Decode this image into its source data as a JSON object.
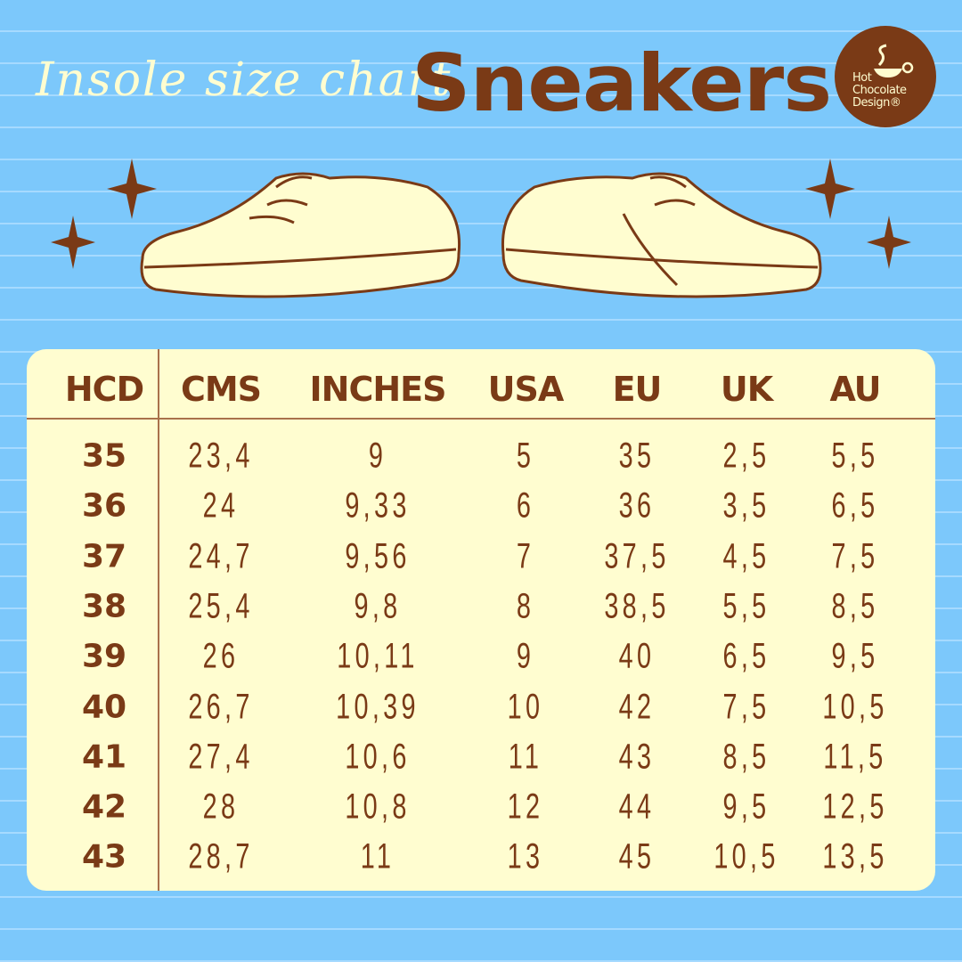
{
  "header": {
    "subtitle": "Insole size chart",
    "title": "Sneakers"
  },
  "logo": {
    "text": [
      "Hot",
      "Chocolate",
      "Design®"
    ]
  },
  "colors": {
    "background": "#7cc8fb",
    "brown": "#7a3a16",
    "cream": "#fffdd0"
  },
  "table": {
    "columns": [
      "HCD",
      "CMS",
      "INCHES",
      "USA",
      "EU",
      "UK",
      "AU"
    ],
    "rows": [
      [
        "35",
        "23,4",
        "9",
        "5",
        "35",
        "2,5",
        "5,5"
      ],
      [
        "36",
        "24",
        "9,33",
        "6",
        "36",
        "3,5",
        "6,5"
      ],
      [
        "37",
        "24,7",
        "9,56",
        "7",
        "37,5",
        "4,5",
        "7,5"
      ],
      [
        "38",
        "25,4",
        "9,8",
        "8",
        "38,5",
        "5,5",
        "8,5"
      ],
      [
        "39",
        "26",
        "10,11",
        "9",
        "40",
        "6,5",
        "9,5"
      ],
      [
        "40",
        "26,7",
        "10,39",
        "10",
        "42",
        "7,5",
        "10,5"
      ],
      [
        "41",
        "27,4",
        "10,6",
        "11",
        "43",
        "8,5",
        "11,5"
      ],
      [
        "42",
        "28",
        "10,8",
        "12",
        "44",
        "9,5",
        "12,5"
      ],
      [
        "43",
        "28,7",
        "11",
        "13",
        "45",
        "10,5",
        "13,5"
      ]
    ]
  }
}
